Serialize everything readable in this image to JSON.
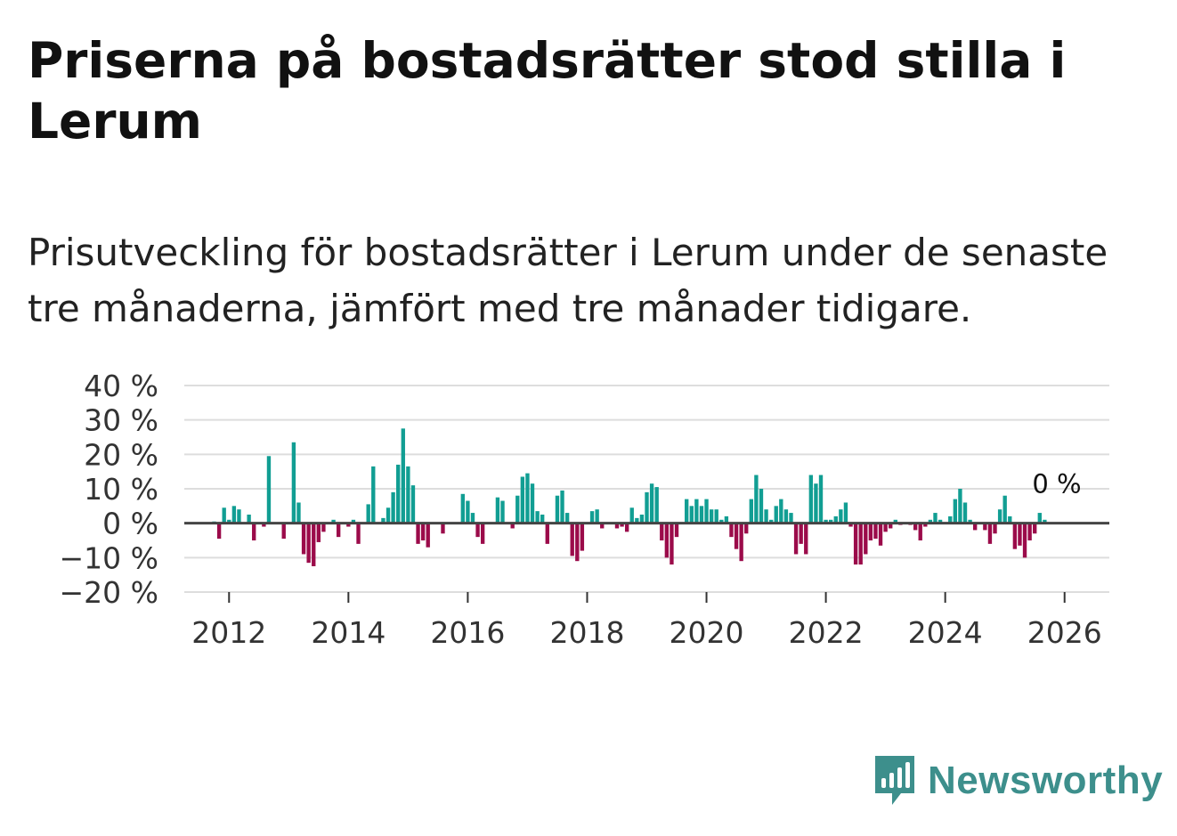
{
  "title": "Priserna på bostadsrätter stod stilla i Lerum",
  "subtitle": "Prisutveckling för bostadsrätter i Lerum under de senaste tre månaderna, jämfört med tre månader tidigare.",
  "brand": {
    "name": "Newsworthy",
    "icon": "newsworthy-logo-icon",
    "color": "#3d8f8c"
  },
  "colors": {
    "positive": "#119e93",
    "negative": "#9b0b4a",
    "grid": "#dddddd",
    "baseline": "#444444"
  },
  "chart_data": {
    "type": "bar",
    "title": "Priserna på bostadsrätter stod stilla i Lerum",
    "ylabel": "",
    "xlabel": "",
    "ylim": [
      -20,
      40
    ],
    "y_ticks": [
      40,
      30,
      20,
      10,
      0,
      -10,
      -20
    ],
    "y_tick_labels": [
      "40 %",
      "30 %",
      "20 %",
      "10 %",
      "0 %",
      "−10 %",
      "−20 %"
    ],
    "x_ticks": [
      2012,
      2014,
      2016,
      2018,
      2020,
      2022,
      2024,
      2026
    ],
    "x_tick_labels": [
      "2012",
      "2014",
      "2016",
      "2018",
      "2020",
      "2022",
      "2024",
      "2026"
    ],
    "xlim": [
      2011.25,
      2026.75
    ],
    "series": [
      {
        "name": "Prisutveckling",
        "start": "2011-10",
        "frequency": "monthly",
        "values": [
          0.5,
          -4.5,
          4.5,
          1,
          5,
          4,
          0,
          2.5,
          -5,
          0,
          -1,
          19.5,
          0,
          0,
          -4.5,
          0,
          23.5,
          6,
          -9,
          -11.5,
          -12.5,
          -5.5,
          -2.5,
          0,
          1,
          -4,
          0,
          -1,
          1,
          -6,
          0,
          5.5,
          16.5,
          0,
          1.5,
          4.5,
          9,
          17,
          27.5,
          16.5,
          11,
          -6,
          -5,
          -7,
          0,
          0,
          -3,
          0,
          0,
          0,
          8.5,
          6.5,
          3,
          -4,
          -6,
          0,
          0,
          7.5,
          6.5,
          0,
          -1.5,
          8,
          13.5,
          14.5,
          11.5,
          3.5,
          2.5,
          -6,
          0,
          8,
          9.5,
          3,
          -9.5,
          -11,
          -8,
          0,
          3.5,
          4,
          -1.5,
          0,
          0,
          -1.5,
          -1,
          -2.5,
          4.5,
          1.5,
          2.5,
          9,
          11.5,
          10.5,
          -5,
          -10,
          -12,
          -4,
          0,
          7,
          5,
          7,
          5,
          7,
          4,
          4,
          1,
          2,
          -4,
          -7.5,
          -11,
          -3,
          7,
          14,
          10,
          4,
          1,
          5,
          7,
          4,
          3,
          -9,
          -6,
          -9,
          14,
          11.5,
          14,
          1,
          1,
          2,
          4,
          6,
          -1,
          -12,
          -12,
          -9,
          -5,
          -4.5,
          -6.5,
          -2.5,
          -1.5,
          1,
          -0.5,
          0,
          -0.5,
          -2,
          -5,
          -1,
          1,
          3,
          1,
          0,
          2,
          7,
          10,
          6,
          1,
          -2,
          0,
          -2,
          -6,
          -3,
          4,
          8,
          2,
          -7.5,
          -6.5,
          -10,
          -5,
          -3,
          3,
          1,
          0
        ],
        "last_label": "0 %"
      }
    ]
  }
}
